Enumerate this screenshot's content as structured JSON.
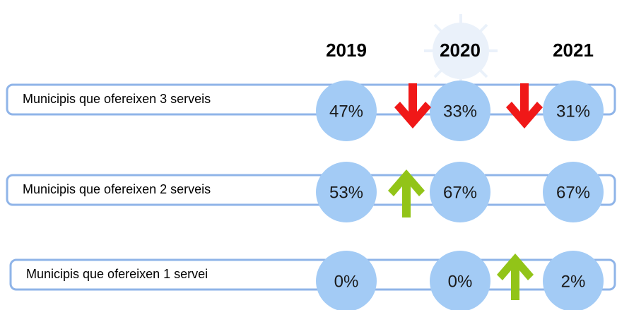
{
  "years": [
    "2019",
    "2020",
    "2021"
  ],
  "rows": [
    {
      "label": "Municipis que ofereixen 3 serveis",
      "values": [
        "47%",
        "33%",
        "31%"
      ]
    },
    {
      "label": "Municipis que ofereixen 2 serveis",
      "values": [
        "53%",
        "67%",
        "67%"
      ]
    },
    {
      "label": "Municipis que ofereixen 1 servei",
      "values": [
        "0%",
        "0%",
        "2%"
      ]
    }
  ]
}
